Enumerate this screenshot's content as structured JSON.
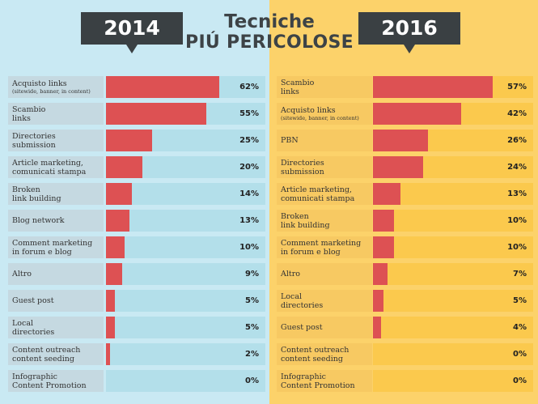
{
  "title": {
    "line1": "Tecniche",
    "line2": "PIÚ PERICOLOSE"
  },
  "chart_data": [
    {
      "type": "bar",
      "year": "2014",
      "categories": [
        {
          "label": "Acquisto links",
          "sub": "(sitewide, banner, in content)"
        },
        {
          "label": "Scambio\nlinks"
        },
        {
          "label": "Directories\nsubmission"
        },
        {
          "label": "Article marketing,\ncomunicati stampa"
        },
        {
          "label": "Broken\nlink building"
        },
        {
          "label": "Blog network"
        },
        {
          "label": "Comment marketing\nin forum e blog"
        },
        {
          "label": "Altro"
        },
        {
          "label": "Guest post"
        },
        {
          "label": "Local\ndirectories"
        },
        {
          "label": "Content outreach\ncontent seeding"
        },
        {
          "label": "Infographic\nContent Promotion"
        }
      ],
      "values": [
        62,
        55,
        25,
        20,
        14,
        13,
        10,
        9,
        5,
        5,
        2,
        0
      ],
      "value_labels": [
        "62%",
        "55%",
        "25%",
        "20%",
        "14%",
        "13%",
        "10%",
        "9%",
        "5%",
        "5%",
        "2%",
        "0%"
      ]
    },
    {
      "type": "bar",
      "year": "2016",
      "categories": [
        {
          "label": "Scambio\nlinks"
        },
        {
          "label": "Acquisto links",
          "sub": "(sitewide, banner, in content)"
        },
        {
          "label": "PBN"
        },
        {
          "label": "Directories\nsubmission"
        },
        {
          "label": "Article marketing,\ncomunicati stampa"
        },
        {
          "label": "Broken\nlink building"
        },
        {
          "label": "Comment marketing\nin forum e blog"
        },
        {
          "label": "Altro"
        },
        {
          "label": "Local\ndirectories"
        },
        {
          "label": "Guest post"
        },
        {
          "label": "Content outreach\ncontent seeding"
        },
        {
          "label": "Infographic\nContent Promotion"
        }
      ],
      "values": [
        57,
        42,
        26,
        24,
        13,
        10,
        10,
        7,
        5,
        4,
        0,
        0
      ],
      "value_labels": [
        "57%",
        "42%",
        "26%",
        "24%",
        "13%",
        "10%",
        "10%",
        "7%",
        "5%",
        "4%",
        "0%",
        "0%"
      ]
    }
  ],
  "colors": {
    "bar": "#dd5153",
    "left_bg": "#c9e9f3",
    "right_bg": "#fcd26a",
    "badge": "#3a4043"
  }
}
